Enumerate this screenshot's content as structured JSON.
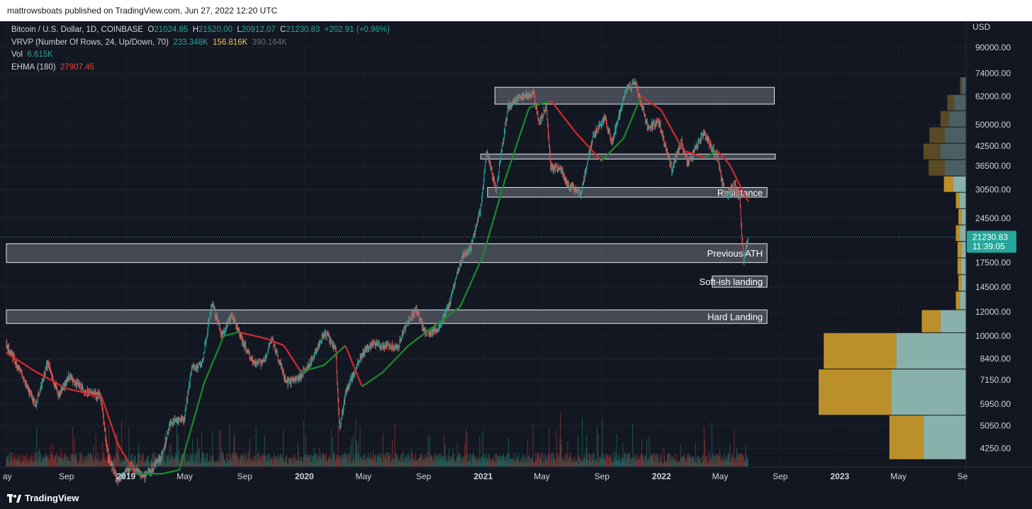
{
  "header": {
    "published": "mattrowsboats published on TradingView.com, Jun 27, 2022 12:20 UTC"
  },
  "legend": {
    "symbol": "Bitcoin / U.S. Dollar, 1D, COINBASE",
    "o_label": "O",
    "o_value": "21024.85",
    "h_label": "H",
    "h_value": "21520.00",
    "l_label": "L",
    "l_value": "20912.07",
    "c_label": "C",
    "c_value": "21230.83",
    "change": "+202.91 (+0.96%)",
    "vrvp_label": "VRVP (Number Of Rows, 24, Up/Down, 70)",
    "vrvp_up": "233.348K",
    "vrvp_down": "156.816K",
    "vrvp_total": "390.164K",
    "vol_label": "Vol",
    "vol_value": "6.615K",
    "ehma_label": "EHMA (180)",
    "ehma_value": "27907.45"
  },
  "price_axis": {
    "currency": "USD",
    "ticks": [
      "90000.00",
      "74000.00",
      "62000.00",
      "50000.00",
      "42500.00",
      "36500.00",
      "30500.00",
      "24500.00",
      "17500.00",
      "14500.00",
      "12000.00",
      "10000.00",
      "8400.00",
      "7150.00",
      "5950.00",
      "5050.00",
      "4250.00"
    ],
    "current_price": "21230.83",
    "countdown": "11:39:05"
  },
  "time_axis": {
    "ticks": [
      {
        "label": "ay",
        "bold": false
      },
      {
        "label": "Sep",
        "bold": false
      },
      {
        "label": "2019",
        "bold": true
      },
      {
        "label": "May",
        "bold": false
      },
      {
        "label": "Sep",
        "bold": false
      },
      {
        "label": "2020",
        "bold": true
      },
      {
        "label": "May",
        "bold": false
      },
      {
        "label": "Sep",
        "bold": false
      },
      {
        "label": "2021",
        "bold": true
      },
      {
        "label": "May",
        "bold": false
      },
      {
        "label": "Sep",
        "bold": false
      },
      {
        "label": "2022",
        "bold": true
      },
      {
        "label": "May",
        "bold": false
      },
      {
        "label": "Sep",
        "bold": false
      },
      {
        "label": "2023",
        "bold": true
      },
      {
        "label": "May",
        "bold": false
      },
      {
        "label": "Se",
        "bold": false
      }
    ]
  },
  "zones": [
    {
      "label": "",
      "low": 58500,
      "high": 66500
    },
    {
      "label": "",
      "low": 38500,
      "high": 40000
    },
    {
      "label": "Resistance",
      "low": 28800,
      "high": 31000
    },
    {
      "label": "Previous ATH",
      "low": 17500,
      "high": 20200
    },
    {
      "label": "Soft-ish landing",
      "low": 14500,
      "high": 15800
    },
    {
      "label": "Hard Landing",
      "low": 11000,
      "high": 12200
    }
  ],
  "chart_data": {
    "type": "line",
    "title": "Bitcoin / U.S. Dollar, 1D, COINBASE",
    "scale": "log",
    "ylim": [
      3700,
      110000
    ],
    "xlim": [
      "2018-05-01",
      "2023-09-15"
    ],
    "colors": {
      "up": "#26a69a",
      "down": "#ef5350",
      "ehma_up": "#1b8a2a",
      "ehma_down": "#d32a2a",
      "vrvp_up": "#c4962a",
      "vrvp_down": "#8fb9b4"
    },
    "series": [
      {
        "name": "Bitcoin / U.S. Dollar",
        "x": [
          "2018-05-01",
          "2018-06-01",
          "2018-06-29",
          "2018-07-25",
          "2018-08-15",
          "2018-09-05",
          "2018-10-15",
          "2018-11-10",
          "2018-11-25",
          "2018-12-15",
          "2019-01-10",
          "2019-02-08",
          "2019-03-15",
          "2019-04-02",
          "2019-04-30",
          "2019-05-15",
          "2019-06-05",
          "2019-06-26",
          "2019-07-15",
          "2019-08-05",
          "2019-08-28",
          "2019-09-20",
          "2019-10-10",
          "2019-10-26",
          "2019-11-25",
          "2019-12-15",
          "2020-01-10",
          "2020-02-13",
          "2020-03-05",
          "2020-03-13",
          "2020-03-25",
          "2020-04-30",
          "2020-05-20",
          "2020-06-15",
          "2020-07-10",
          "2020-07-28",
          "2020-08-17",
          "2020-09-05",
          "2020-10-05",
          "2020-10-25",
          "2020-11-20",
          "2020-12-05",
          "2020-12-27",
          "2021-01-08",
          "2021-01-27",
          "2021-02-21",
          "2021-03-13",
          "2021-04-14",
          "2021-04-25",
          "2021-05-10",
          "2021-05-19",
          "2021-06-10",
          "2021-06-22",
          "2021-07-20",
          "2021-08-14",
          "2021-09-07",
          "2021-09-21",
          "2021-10-20",
          "2021-11-10",
          "2021-12-04",
          "2021-12-27",
          "2022-01-22",
          "2022-02-10",
          "2022-02-24",
          "2022-03-28",
          "2022-04-25",
          "2022-05-12",
          "2022-05-31",
          "2022-06-10",
          "2022-06-14",
          "2022-06-18",
          "2022-06-27"
        ],
        "y": [
          9300,
          7500,
          5900,
          8200,
          6300,
          7300,
          6500,
          6300,
          4000,
          3300,
          3700,
          3400,
          4000,
          5200,
          5300,
          7800,
          8000,
          13000,
          10000,
          11800,
          9500,
          8100,
          8200,
          9900,
          7000,
          7100,
          8000,
          10300,
          9000,
          4900,
          6500,
          8800,
          9500,
          9300,
          9200,
          11000,
          12200,
          10200,
          10700,
          13000,
          18500,
          19300,
          26500,
          40800,
          30500,
          57500,
          61000,
          64000,
          50000,
          58000,
          36000,
          35500,
          31500,
          29800,
          46000,
          52500,
          43000,
          66000,
          68500,
          49000,
          51000,
          35500,
          44000,
          37000,
          47000,
          39000,
          28800,
          31700,
          29000,
          22000,
          17700,
          21230
        ]
      },
      {
        "name": "EHMA (180)",
        "x": [
          "2018-05-01",
          "2018-07-01",
          "2018-09-01",
          "2018-11-12",
          "2018-12-15",
          "2019-01-20",
          "2019-03-15",
          "2019-04-20",
          "2019-06-10",
          "2019-07-20",
          "2019-08-20",
          "2019-10-15",
          "2019-11-20",
          "2019-12-25",
          "2020-02-10",
          "2020-03-25",
          "2020-04-28",
          "2020-06-10",
          "2020-08-01",
          "2020-09-30",
          "2020-11-15",
          "2021-01-01",
          "2021-02-15",
          "2021-04-05",
          "2021-05-20",
          "2021-07-10",
          "2021-08-31",
          "2021-10-15",
          "2021-11-20",
          "2021-12-31",
          "2022-02-15",
          "2022-03-31",
          "2022-04-25",
          "2022-05-20",
          "2022-06-27"
        ],
        "y": [
          8800,
          7600,
          6700,
          6300,
          4400,
          3500,
          3500,
          3600,
          7000,
          10000,
          10300,
          9800,
          9300,
          7600,
          8000,
          9300,
          6800,
          7600,
          9300,
          11000,
          12500,
          18500,
          33000,
          57000,
          60000,
          47000,
          38000,
          45000,
          62000,
          56000,
          41000,
          39000,
          41000,
          37000,
          27907
        ]
      }
    ],
    "volume_profile": {
      "rows": [
        {
          "price": 4600,
          "up": 40,
          "down": 50
        },
        {
          "price": 6500,
          "up": 85,
          "down": 88
        },
        {
          "price": 9300,
          "up": 85,
          "down": 82
        },
        {
          "price": 11300,
          "up": 22,
          "down": 30
        },
        {
          "price": 13200,
          "up": 5,
          "down": 7
        },
        {
          "price": 15000,
          "up": 4,
          "down": 5
        },
        {
          "price": 17000,
          "up": 4,
          "down": 6
        },
        {
          "price": 19300,
          "up": 5,
          "down": 5
        },
        {
          "price": 21900,
          "up": 5,
          "down": 7
        },
        {
          "price": 24800,
          "up": 4,
          "down": 5
        },
        {
          "price": 28100,
          "up": 4,
          "down": 8
        },
        {
          "price": 31800,
          "up": 11,
          "down": 15
        },
        {
          "price": 36000,
          "up": 19,
          "down": 25
        },
        {
          "price": 40800,
          "up": 20,
          "down": 30
        },
        {
          "price": 46200,
          "up": 18,
          "down": 25
        },
        {
          "price": 52300,
          "up": 10,
          "down": 20
        },
        {
          "price": 59200,
          "up": 8,
          "down": 14
        },
        {
          "price": 67000,
          "up": 2,
          "down": 5
        }
      ]
    },
    "last_price": 21230.83
  }
}
